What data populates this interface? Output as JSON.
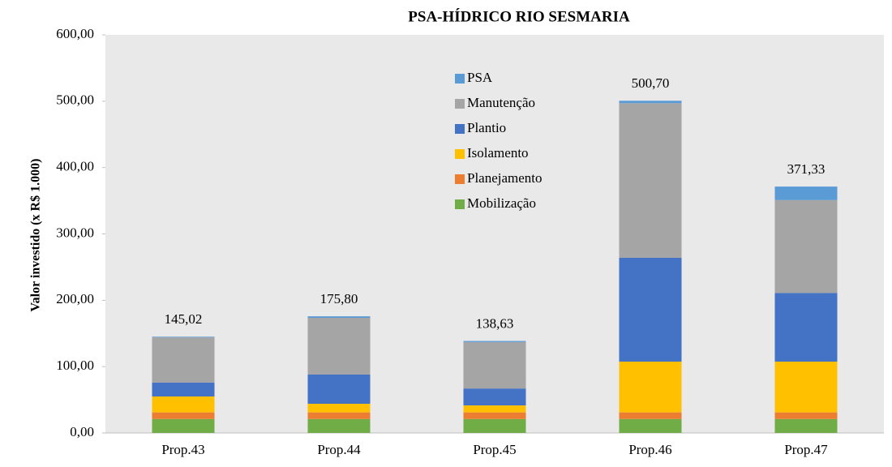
{
  "chart_data": {
    "type": "stacked_bar",
    "title": "PSA-HÍDRICO RIO SESMARIA",
    "y_label": "Valor investido (x R$ 1.000)",
    "categories": [
      "Prop.43",
      "Prop.44",
      "Prop.45",
      "Prop.46",
      "Prop.47"
    ],
    "series": [
      {
        "name": "Mobilização",
        "color": "#70ad47",
        "values": [
          21,
          21,
          21,
          21,
          21
        ]
      },
      {
        "name": "Planejamento",
        "color": "#ed7d31",
        "values": [
          10,
          10,
          10,
          10,
          10
        ]
      },
      {
        "name": "Isolamento",
        "color": "#ffc000",
        "values": [
          24,
          13,
          10.5,
          76.5,
          76.5
        ]
      },
      {
        "name": "Plantio",
        "color": "#4472c4",
        "values": [
          21,
          44,
          25.5,
          156.5,
          103.5
        ]
      },
      {
        "name": "Manutenção",
        "color": "#a5a5a5",
        "values": [
          68,
          85.5,
          70,
          233,
          140
        ]
      },
      {
        "name": "PSA",
        "color": "#5b9bd5",
        "values": [
          1.02,
          2.3,
          1.63,
          3.7,
          20.33
        ]
      }
    ],
    "totals": [
      145.02,
      175.8,
      138.63,
      500.7,
      371.33
    ],
    "total_labels": [
      "145,02",
      "175,80",
      "138,63",
      "500,70",
      "371,33"
    ],
    "ylim": [
      0,
      600
    ],
    "yticks": [
      {
        "value": 0,
        "label": "0,00"
      },
      {
        "value": 100,
        "label": "100,00"
      },
      {
        "value": 200,
        "label": "200,00"
      },
      {
        "value": 300,
        "label": "300,00"
      },
      {
        "value": 400,
        "label": "400,00"
      },
      {
        "value": 500,
        "label": "500,00"
      },
      {
        "value": 600,
        "label": "600,00"
      }
    ],
    "legend": "inside-top"
  }
}
